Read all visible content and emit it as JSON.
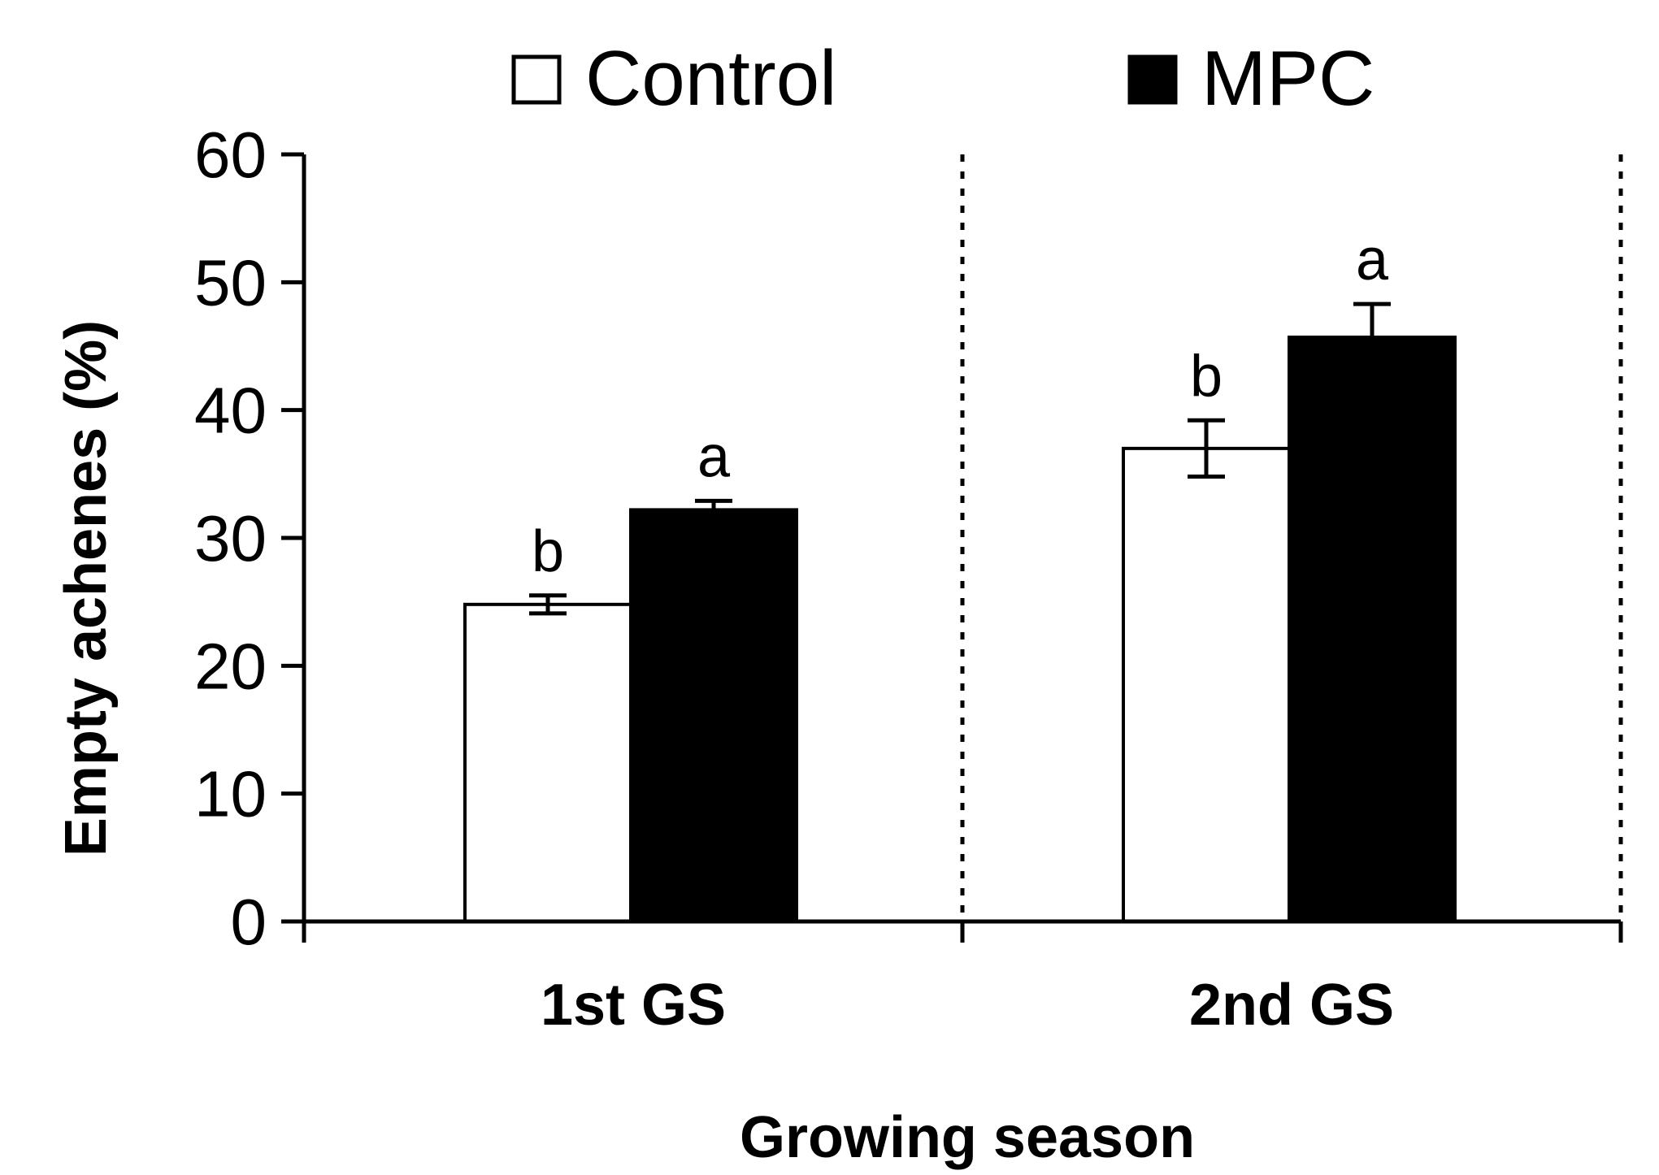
{
  "chart_data": {
    "type": "bar",
    "title": "",
    "xlabel": "Growing season",
    "ylabel": "Empty achenes (%)",
    "ylim": [
      0,
      60
    ],
    "yticks": [
      0,
      10,
      20,
      30,
      40,
      50,
      60
    ],
    "categories": [
      "1st GS",
      "2nd GS"
    ],
    "series": [
      {
        "name": "Control",
        "color": "#ffffff",
        "values": [
          24.8,
          37.0
        ],
        "errors": [
          0.7,
          2.2
        ],
        "letters": [
          "b",
          "b"
        ]
      },
      {
        "name": "MPC",
        "color": "#000000",
        "values": [
          32.2,
          45.7
        ],
        "errors": [
          0.7,
          2.6
        ],
        "letters": [
          "a",
          "a"
        ]
      }
    ],
    "legend_position": "top",
    "group_separators": "dotted"
  }
}
